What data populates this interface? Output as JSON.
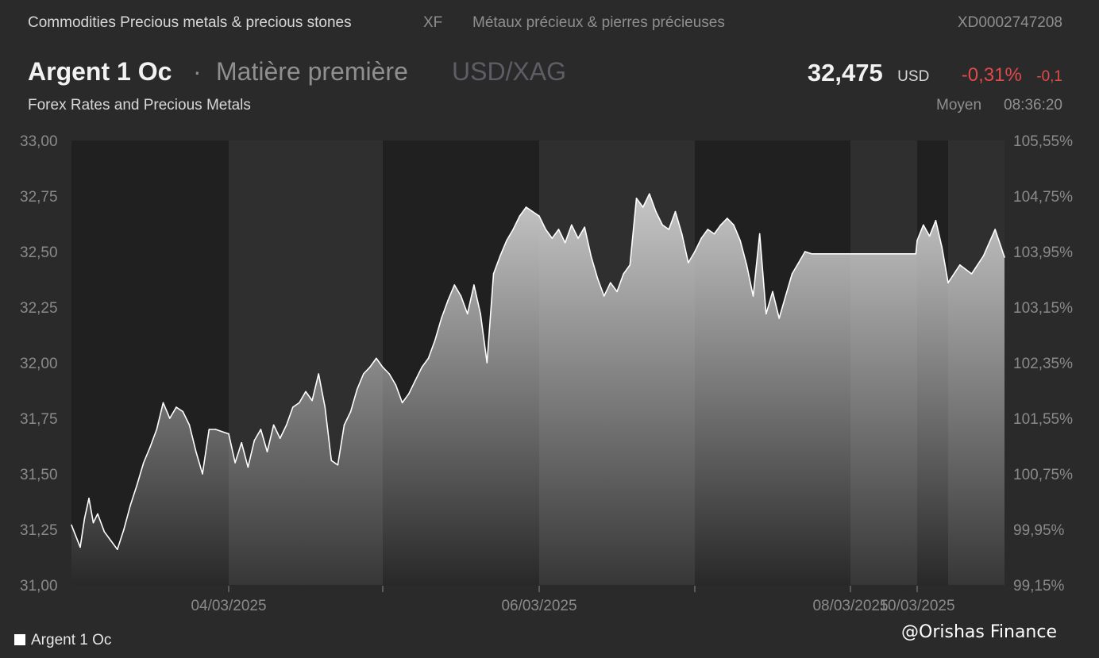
{
  "topbar": {
    "category": "Commodities Precious metals & precious stones",
    "exchange": "XF",
    "category_fr": "Métaux précieux & pierres précieuses",
    "isin": "XD0002747208"
  },
  "header": {
    "name": "Argent 1 Oc",
    "separator": "·",
    "type": "Matière première",
    "pair": "USD/XAG"
  },
  "quote": {
    "price": "32,475",
    "currency": "USD",
    "change_pct": "-0,31%",
    "change_abs": "-0,1",
    "price_type": "Moyen",
    "time": "08:36:20"
  },
  "subtitle": "Forex Rates and Precious Metals",
  "legend": {
    "label": "Argent 1 Oc",
    "swatch_color": "#ffffff"
  },
  "credit": "@Orishas Finance",
  "colors": {
    "background": "#2a2a2a",
    "band_dark": "#202020",
    "band_light": "#2f2f2f",
    "line": "#ffffff",
    "negative": "#e14a4a"
  },
  "chart_data": {
    "type": "area",
    "title": "",
    "xlabel": "",
    "ylabel": "",
    "ylim": [
      31.0,
      33.0
    ],
    "y_ticks": [
      "33,00",
      "32,75",
      "32,50",
      "32,25",
      "32,00",
      "31,75",
      "31,50",
      "31,25",
      "31,00"
    ],
    "y2lim": [
      99.15,
      105.55
    ],
    "y2_ticks": [
      "105,55%",
      "104,75%",
      "103,95%",
      "103,15%",
      "102,35%",
      "101,55%",
      "100,75%",
      "99,95%",
      "99,15%"
    ],
    "x_tick_labels": [
      {
        "date": "04/03/2025",
        "label": "04/03/2025"
      },
      {
        "date": "05/03/2025",
        "label": ""
      },
      {
        "date": "06/03/2025",
        "label": "06/03/2025"
      },
      {
        "date": "07/03/2025",
        "label": ""
      },
      {
        "date": "08/03/2025",
        "label": "08/03/2025"
      },
      {
        "date": "10/03/2025",
        "label": "10/03/2025"
      }
    ],
    "day_bands": [
      {
        "start": "03/03/2025 00:00",
        "end": "04/03/2025 00:00",
        "shade": "dark"
      },
      {
        "start": "04/03/2025 00:00",
        "end": "05/03/2025 00:00",
        "shade": "light"
      },
      {
        "start": "05/03/2025 00:00",
        "end": "06/03/2025 00:00",
        "shade": "dark"
      },
      {
        "start": "06/03/2025 00:00",
        "end": "07/03/2025 00:00",
        "shade": "light"
      },
      {
        "start": "07/03/2025 00:00",
        "end": "08/03/2025 00:00",
        "shade": "dark"
      },
      {
        "start": "08/03/2025 00:00",
        "end": "10/03/2025 00:00",
        "shade": "light"
      },
      {
        "start": "10/03/2025 00:00",
        "end": "10/03/2025 05:00",
        "shade": "dark"
      },
      {
        "start": "10/03/2025 05:00",
        "end": "10/03/2025 08:36",
        "shade": "light"
      }
    ],
    "series": [
      {
        "name": "Argent 1 Oc",
        "points": [
          {
            "x": "03/03/2025 00:00",
            "y": 31.27
          },
          {
            "x": "03/03/2025 01:20",
            "y": 31.17
          },
          {
            "x": "03/03/2025 02:00",
            "y": 31.3
          },
          {
            "x": "03/03/2025 02:40",
            "y": 31.39
          },
          {
            "x": "03/03/2025 03:20",
            "y": 31.28
          },
          {
            "x": "03/03/2025 04:00",
            "y": 31.32
          },
          {
            "x": "03/03/2025 05:00",
            "y": 31.24
          },
          {
            "x": "03/03/2025 06:00",
            "y": 31.2
          },
          {
            "x": "03/03/2025 07:00",
            "y": 31.16
          },
          {
            "x": "03/03/2025 08:00",
            "y": 31.25
          },
          {
            "x": "03/03/2025 09:00",
            "y": 31.36
          },
          {
            "x": "03/03/2025 10:00",
            "y": 31.45
          },
          {
            "x": "03/03/2025 11:00",
            "y": 31.55
          },
          {
            "x": "03/03/2025 12:00",
            "y": 31.62
          },
          {
            "x": "03/03/2025 13:00",
            "y": 31.7
          },
          {
            "x": "03/03/2025 14:00",
            "y": 31.82
          },
          {
            "x": "03/03/2025 15:00",
            "y": 31.75
          },
          {
            "x": "03/03/2025 16:00",
            "y": 31.8
          },
          {
            "x": "03/03/2025 17:00",
            "y": 31.78
          },
          {
            "x": "03/03/2025 18:00",
            "y": 31.72
          },
          {
            "x": "03/03/2025 19:00",
            "y": 31.6
          },
          {
            "x": "03/03/2025 20:00",
            "y": 31.5
          },
          {
            "x": "03/03/2025 21:00",
            "y": 31.7
          },
          {
            "x": "03/03/2025 22:00",
            "y": 31.7
          },
          {
            "x": "04/03/2025 00:00",
            "y": 31.68
          },
          {
            "x": "04/03/2025 01:00",
            "y": 31.55
          },
          {
            "x": "04/03/2025 02:00",
            "y": 31.64
          },
          {
            "x": "04/03/2025 03:00",
            "y": 31.53
          },
          {
            "x": "04/03/2025 04:00",
            "y": 31.65
          },
          {
            "x": "04/03/2025 05:00",
            "y": 31.7
          },
          {
            "x": "04/03/2025 06:00",
            "y": 31.6
          },
          {
            "x": "04/03/2025 07:00",
            "y": 31.72
          },
          {
            "x": "04/03/2025 08:00",
            "y": 31.66
          },
          {
            "x": "04/03/2025 09:00",
            "y": 31.72
          },
          {
            "x": "04/03/2025 10:00",
            "y": 31.8
          },
          {
            "x": "04/03/2025 11:00",
            "y": 31.82
          },
          {
            "x": "04/03/2025 12:00",
            "y": 31.87
          },
          {
            "x": "04/03/2025 13:00",
            "y": 31.83
          },
          {
            "x": "04/03/2025 14:00",
            "y": 31.95
          },
          {
            "x": "04/03/2025 15:00",
            "y": 31.8
          },
          {
            "x": "04/03/2025 16:00",
            "y": 31.56
          },
          {
            "x": "04/03/2025 17:00",
            "y": 31.54
          },
          {
            "x": "04/03/2025 18:00",
            "y": 31.72
          },
          {
            "x": "04/03/2025 19:00",
            "y": 31.78
          },
          {
            "x": "04/03/2025 20:00",
            "y": 31.88
          },
          {
            "x": "04/03/2025 21:00",
            "y": 31.95
          },
          {
            "x": "04/03/2025 22:00",
            "y": 31.98
          },
          {
            "x": "04/03/2025 23:00",
            "y": 32.02
          },
          {
            "x": "05/03/2025 00:00",
            "y": 31.98
          },
          {
            "x": "05/03/2025 01:00",
            "y": 31.95
          },
          {
            "x": "05/03/2025 02:00",
            "y": 31.9
          },
          {
            "x": "05/03/2025 03:00",
            "y": 31.82
          },
          {
            "x": "05/03/2025 04:00",
            "y": 31.86
          },
          {
            "x": "05/03/2025 05:00",
            "y": 31.92
          },
          {
            "x": "05/03/2025 06:00",
            "y": 31.98
          },
          {
            "x": "05/03/2025 07:00",
            "y": 32.02
          },
          {
            "x": "05/03/2025 08:00",
            "y": 32.1
          },
          {
            "x": "05/03/2025 09:00",
            "y": 32.2
          },
          {
            "x": "05/03/2025 10:00",
            "y": 32.28
          },
          {
            "x": "05/03/2025 11:00",
            "y": 32.35
          },
          {
            "x": "05/03/2025 12:00",
            "y": 32.3
          },
          {
            "x": "05/03/2025 13:00",
            "y": 32.22
          },
          {
            "x": "05/03/2025 14:00",
            "y": 32.35
          },
          {
            "x": "05/03/2025 15:00",
            "y": 32.22
          },
          {
            "x": "05/03/2025 16:00",
            "y": 32.0
          },
          {
            "x": "05/03/2025 17:00",
            "y": 32.4
          },
          {
            "x": "05/03/2025 18:00",
            "y": 32.48
          },
          {
            "x": "05/03/2025 19:00",
            "y": 32.55
          },
          {
            "x": "05/03/2025 20:00",
            "y": 32.6
          },
          {
            "x": "05/03/2025 21:00",
            "y": 32.66
          },
          {
            "x": "05/03/2025 22:00",
            "y": 32.7
          },
          {
            "x": "05/03/2025 23:00",
            "y": 32.68
          },
          {
            "x": "06/03/2025 00:00",
            "y": 32.66
          },
          {
            "x": "06/03/2025 01:00",
            "y": 32.6
          },
          {
            "x": "06/03/2025 02:00",
            "y": 32.56
          },
          {
            "x": "06/03/2025 03:00",
            "y": 32.6
          },
          {
            "x": "06/03/2025 04:00",
            "y": 32.54
          },
          {
            "x": "06/03/2025 05:00",
            "y": 32.62
          },
          {
            "x": "06/03/2025 06:00",
            "y": 32.56
          },
          {
            "x": "06/03/2025 07:00",
            "y": 32.61
          },
          {
            "x": "06/03/2025 08:00",
            "y": 32.48
          },
          {
            "x": "06/03/2025 09:00",
            "y": 32.38
          },
          {
            "x": "06/03/2025 10:00",
            "y": 32.3
          },
          {
            "x": "06/03/2025 11:00",
            "y": 32.36
          },
          {
            "x": "06/03/2025 12:00",
            "y": 32.32
          },
          {
            "x": "06/03/2025 13:00",
            "y": 32.4
          },
          {
            "x": "06/03/2025 14:00",
            "y": 32.44
          },
          {
            "x": "06/03/2025 15:00",
            "y": 32.74
          },
          {
            "x": "06/03/2025 16:00",
            "y": 32.7
          },
          {
            "x": "06/03/2025 17:00",
            "y": 32.76
          },
          {
            "x": "06/03/2025 18:00",
            "y": 32.68
          },
          {
            "x": "06/03/2025 19:00",
            "y": 32.62
          },
          {
            "x": "06/03/2025 20:00",
            "y": 32.6
          },
          {
            "x": "06/03/2025 21:00",
            "y": 32.68
          },
          {
            "x": "06/03/2025 22:00",
            "y": 32.58
          },
          {
            "x": "06/03/2025 23:00",
            "y": 32.45
          },
          {
            "x": "07/03/2025 00:00",
            "y": 32.5
          },
          {
            "x": "07/03/2025 01:00",
            "y": 32.56
          },
          {
            "x": "07/03/2025 02:00",
            "y": 32.6
          },
          {
            "x": "07/03/2025 03:00",
            "y": 32.58
          },
          {
            "x": "07/03/2025 04:00",
            "y": 32.62
          },
          {
            "x": "07/03/2025 05:00",
            "y": 32.65
          },
          {
            "x": "07/03/2025 06:00",
            "y": 32.62
          },
          {
            "x": "07/03/2025 07:00",
            "y": 32.55
          },
          {
            "x": "07/03/2025 08:00",
            "y": 32.44
          },
          {
            "x": "07/03/2025 09:00",
            "y": 32.3
          },
          {
            "x": "07/03/2025 10:00",
            "y": 32.58
          },
          {
            "x": "07/03/2025 11:00",
            "y": 32.22
          },
          {
            "x": "07/03/2025 12:00",
            "y": 32.32
          },
          {
            "x": "07/03/2025 13:00",
            "y": 32.2
          },
          {
            "x": "07/03/2025 14:00",
            "y": 32.3
          },
          {
            "x": "07/03/2025 15:00",
            "y": 32.4
          },
          {
            "x": "07/03/2025 16:00",
            "y": 32.45
          },
          {
            "x": "07/03/2025 17:00",
            "y": 32.5
          },
          {
            "x": "07/03/2025 18:00",
            "y": 32.49
          },
          {
            "x": "08/03/2025 00:00",
            "y": 32.49
          },
          {
            "x": "09/03/2025 23:00",
            "y": 32.49
          },
          {
            "x": "10/03/2025 00:00",
            "y": 32.55
          },
          {
            "x": "10/03/2025 01:00",
            "y": 32.62
          },
          {
            "x": "10/03/2025 02:00",
            "y": 32.57
          },
          {
            "x": "10/03/2025 03:00",
            "y": 32.64
          },
          {
            "x": "10/03/2025 04:00",
            "y": 32.52
          },
          {
            "x": "10/03/2025 05:00",
            "y": 32.36
          },
          {
            "x": "10/03/2025 05:45",
            "y": 32.44
          },
          {
            "x": "10/03/2025 06:30",
            "y": 32.4
          },
          {
            "x": "10/03/2025 07:15",
            "y": 32.48
          },
          {
            "x": "10/03/2025 08:00",
            "y": 32.6
          },
          {
            "x": "10/03/2025 08:36",
            "y": 32.475
          }
        ]
      }
    ],
    "grid": false,
    "legend_position": "bottom-left"
  }
}
